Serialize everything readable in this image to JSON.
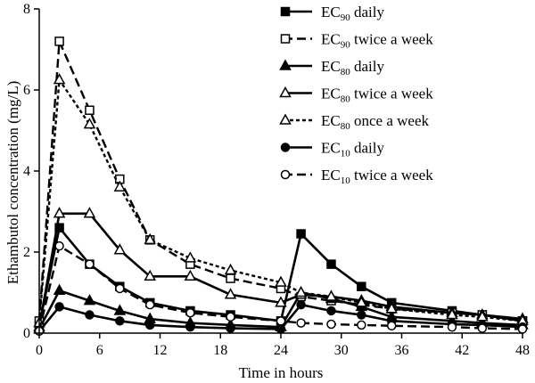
{
  "chart_data": {
    "type": "line",
    "xlabel": "Time in hours",
    "ylabel": "Ethambutol concentration (mg/L)",
    "xlim": [
      0,
      48
    ],
    "ylim": [
      0,
      8
    ],
    "xticks": [
      0,
      6,
      12,
      18,
      24,
      30,
      36,
      42,
      48
    ],
    "yticks": [
      0,
      2,
      4,
      6,
      8
    ],
    "grid": false,
    "legend_position": "top-right",
    "series": [
      {
        "name": "EC90 daily",
        "name_base": "EC",
        "name_sub": "90",
        "name_rest": " daily",
        "marker": "square-filled",
        "line": "solid",
        "x": [
          0,
          2,
          5,
          8,
          11,
          15,
          19,
          24,
          26,
          29,
          32,
          35,
          41,
          44,
          48
        ],
        "y": [
          0.2,
          2.6,
          1.7,
          1.15,
          0.75,
          0.55,
          0.45,
          0.3,
          2.45,
          1.7,
          1.15,
          0.75,
          0.55,
          0.45,
          0.3
        ]
      },
      {
        "name": "EC90 twice a week",
        "name_base": "EC",
        "name_sub": "90",
        "name_rest": " twice a week",
        "marker": "square-open",
        "line": "dashed",
        "x": [
          0,
          2,
          5,
          8,
          11,
          15,
          19,
          24,
          26,
          29,
          32,
          35,
          41,
          44,
          48
        ],
        "y": [
          0.3,
          7.2,
          5.5,
          3.8,
          2.3,
          1.7,
          1.35,
          1.1,
          0.9,
          0.8,
          0.7,
          0.6,
          0.5,
          0.45,
          0.3
        ]
      },
      {
        "name": "EC80 daily",
        "name_base": "EC",
        "name_sub": "80",
        "name_rest": " daily",
        "marker": "triangle-filled",
        "line": "solid",
        "x": [
          0,
          2,
          5,
          8,
          11,
          15,
          19,
          24,
          26,
          29,
          32,
          35,
          41,
          44,
          48
        ],
        "y": [
          0.1,
          1.05,
          0.8,
          0.55,
          0.35,
          0.25,
          0.2,
          0.15,
          1.0,
          0.85,
          0.65,
          0.4,
          0.3,
          0.25,
          0.2
        ]
      },
      {
        "name": "EC80 twice a week",
        "name_base": "EC",
        "name_sub": "80",
        "name_rest": " twice a week",
        "marker": "triangle-open",
        "line": "solid",
        "x": [
          0,
          2,
          5,
          8,
          11,
          15,
          19,
          24,
          26,
          29,
          32,
          35,
          41,
          44,
          48
        ],
        "y": [
          0.15,
          2.95,
          2.95,
          2.05,
          1.4,
          1.4,
          0.95,
          0.75,
          0.95,
          0.9,
          0.8,
          0.65,
          0.5,
          0.45,
          0.35
        ]
      },
      {
        "name": "EC80 once a week",
        "name_base": "EC",
        "name_sub": "80",
        "name_rest": " once a week",
        "marker": "triangle-open",
        "line": "dotted",
        "x": [
          0,
          2,
          5,
          8,
          11,
          15,
          19,
          24,
          26,
          29,
          32,
          35,
          41,
          44,
          48
        ],
        "y": [
          0.25,
          6.25,
          5.15,
          3.6,
          2.3,
          1.85,
          1.55,
          1.25,
          1.0,
          0.9,
          0.75,
          0.6,
          0.45,
          0.4,
          0.3
        ]
      },
      {
        "name": "EC10 daily",
        "name_base": "EC",
        "name_sub": "10",
        "name_rest": " daily",
        "marker": "circle-filled",
        "line": "solid",
        "x": [
          0,
          2,
          5,
          8,
          11,
          15,
          19,
          24,
          26,
          29,
          32,
          35,
          41,
          44,
          48
        ],
        "y": [
          0.05,
          0.65,
          0.45,
          0.3,
          0.2,
          0.15,
          0.12,
          0.1,
          0.7,
          0.55,
          0.45,
          0.3,
          0.22,
          0.2,
          0.15
        ]
      },
      {
        "name": "EC10 twice a week",
        "name_base": "EC",
        "name_sub": "10",
        "name_rest": " twice a week",
        "marker": "circle-open",
        "line": "dashed",
        "x": [
          0,
          2,
          5,
          8,
          11,
          15,
          19,
          24,
          26,
          29,
          32,
          35,
          41,
          44,
          48
        ],
        "y": [
          0.05,
          2.15,
          1.7,
          1.1,
          0.7,
          0.5,
          0.4,
          0.3,
          0.25,
          0.22,
          0.2,
          0.18,
          0.15,
          0.12,
          0.1
        ]
      }
    ]
  }
}
